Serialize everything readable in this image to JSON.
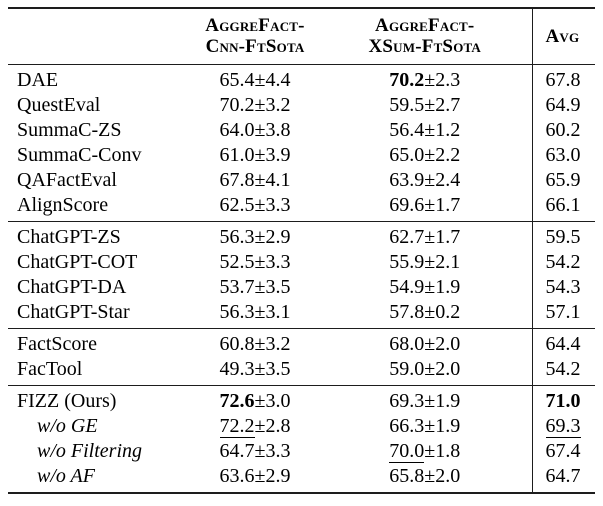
{
  "table": {
    "header": {
      "col2": {
        "line1": "AggreFact-",
        "line2": "Cnn-FtSota"
      },
      "col3": {
        "line1": "AggreFact-",
        "line2": "XSum-FtSota"
      },
      "col4": "Avg"
    },
    "sections": [
      {
        "rows": [
          {
            "name": "DAE",
            "cnn": "65.4",
            "cnn_pm": "±4.4",
            "xsum": "70.2",
            "xsum_pm": "±2.3",
            "avg": "67.8"
          },
          {
            "name": "QuestEval",
            "cnn": "70.2",
            "cnn_pm": "±3.2",
            "xsum": "59.5",
            "xsum_pm": "±2.7",
            "avg": "64.9"
          },
          {
            "name": "SummaC-ZS",
            "cnn": "64.0",
            "cnn_pm": "±3.8",
            "xsum": "56.4",
            "xsum_pm": "±1.2",
            "avg": "60.2"
          },
          {
            "name": "SummaC-Conv",
            "cnn": "61.0",
            "cnn_pm": "±3.9",
            "xsum": "65.0",
            "xsum_pm": "±2.2",
            "avg": "63.0"
          },
          {
            "name": "QAFactEval",
            "cnn": "67.8",
            "cnn_pm": "±4.1",
            "xsum": "63.9",
            "xsum_pm": "±2.4",
            "avg": "65.9"
          },
          {
            "name": "AlignScore",
            "cnn": "62.5",
            "cnn_pm": "±3.3",
            "xsum": "69.6",
            "xsum_pm": "±1.7",
            "avg": "66.1"
          }
        ]
      },
      {
        "rows": [
          {
            "name": "ChatGPT-ZS",
            "cnn": "56.3",
            "cnn_pm": "±2.9",
            "xsum": "62.7",
            "xsum_pm": "±1.7",
            "avg": "59.5"
          },
          {
            "name": "ChatGPT-COT",
            "cnn": "52.5",
            "cnn_pm": "±3.3",
            "xsum": "55.9",
            "xsum_pm": "±2.1",
            "avg": "54.2"
          },
          {
            "name": "ChatGPT-DA",
            "cnn": "53.7",
            "cnn_pm": "±3.5",
            "xsum": "54.9",
            "xsum_pm": "±1.9",
            "avg": "54.3"
          },
          {
            "name": "ChatGPT-Star",
            "cnn": "56.3",
            "cnn_pm": "±3.1",
            "xsum": "57.8",
            "xsum_pm": "±0.2",
            "avg": "57.1"
          }
        ]
      },
      {
        "rows": [
          {
            "name": "FactScore",
            "cnn": "60.8",
            "cnn_pm": "±3.2",
            "xsum": "68.0",
            "xsum_pm": "±2.0",
            "avg": "64.4"
          },
          {
            "name": "FacTool",
            "cnn": "49.3",
            "cnn_pm": "±3.5",
            "xsum": "59.0",
            "xsum_pm": "±2.0",
            "avg": "54.2"
          }
        ]
      },
      {
        "rows": [
          {
            "name": "FIZZ (Ours)",
            "cnn": "72.6",
            "cnn_pm": "±3.0",
            "xsum": "69.3",
            "xsum_pm": "±1.9",
            "avg": "71.0"
          },
          {
            "name": "w/o GE",
            "cnn": "72.2",
            "cnn_pm": "±2.8",
            "xsum": "66.3",
            "xsum_pm": "±1.9",
            "avg": "69.3"
          },
          {
            "name": "w/o Filtering",
            "cnn": "64.7",
            "cnn_pm": "±3.3",
            "xsum": "70.0",
            "xsum_pm": "±1.8",
            "avg": "67.4"
          },
          {
            "name": "w/o AF",
            "cnn": "63.6",
            "cnn_pm": "±2.9",
            "xsum": "65.8",
            "xsum_pm": "±2.0",
            "avg": "64.7"
          }
        ]
      }
    ]
  }
}
